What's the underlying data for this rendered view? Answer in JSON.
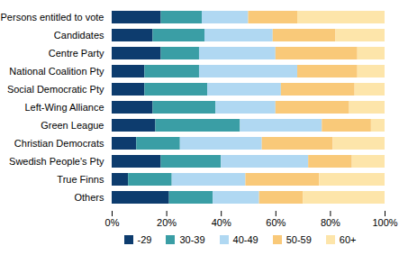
{
  "chart_data": {
    "type": "bar",
    "orientation": "horizontal",
    "stacked": true,
    "grid": false,
    "legend": "bottom",
    "categories": [
      "Persons entitled to vote",
      "Candidates",
      "Centre Party",
      "National Coalition Pty",
      "Social Democratic Pty",
      "Left-Wing Alliance",
      "Green League",
      "Christian Democrats",
      "Swedish People's Pty",
      "True Finns",
      "Others"
    ],
    "series": [
      {
        "name": "-29",
        "color": "#0d3c6e",
        "values": [
          18,
          15,
          18,
          12,
          12,
          15,
          16,
          9,
          18,
          6,
          21
        ]
      },
      {
        "name": "30-39",
        "color": "#3a9ea5",
        "values": [
          15,
          19,
          14,
          20,
          23,
          23,
          31,
          16,
          22,
          16,
          16
        ]
      },
      {
        "name": "40-49",
        "color": "#b0d8f2",
        "values": [
          17,
          25,
          28,
          36,
          27,
          22,
          30,
          30,
          32,
          27,
          17
        ]
      },
      {
        "name": "50-59",
        "color": "#f9c979",
        "values": [
          18,
          23,
          30,
          22,
          27,
          27,
          18,
          26,
          16,
          27,
          16
        ]
      },
      {
        "name": "60+",
        "color": "#fde5aa",
        "values": [
          32,
          18,
          10,
          10,
          11,
          13,
          5,
          19,
          12,
          24,
          30
        ]
      }
    ],
    "xlim": [
      0,
      100
    ],
    "xticks": [
      {
        "value": 0,
        "label": "0%"
      },
      {
        "value": 20,
        "label": "20%"
      },
      {
        "value": 40,
        "label": "40%"
      },
      {
        "value": 60,
        "label": "60%"
      },
      {
        "value": 80,
        "label": "80%"
      },
      {
        "value": 100,
        "label": "100%"
      }
    ]
  }
}
